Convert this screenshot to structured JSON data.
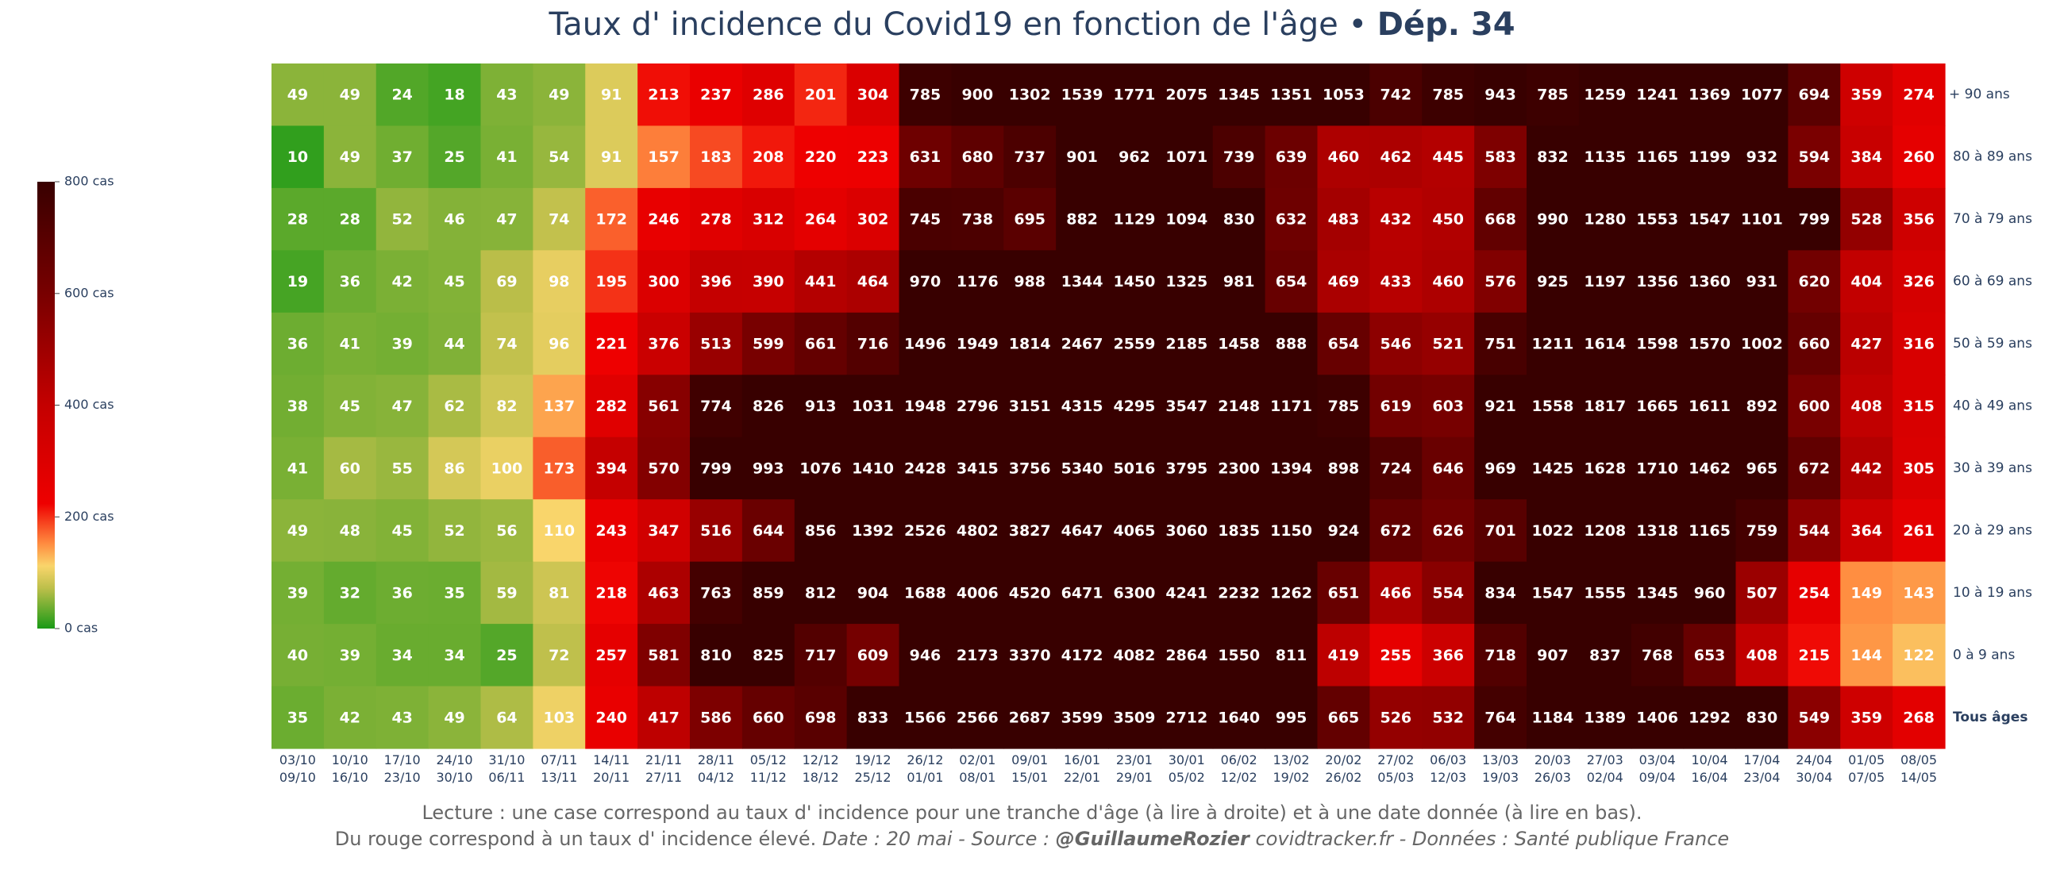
{
  "header": {
    "title_main": "Taux d' incidence du Covid19 en fonction de l'âge",
    "title_sep": " • ",
    "title_dept": "Dép. 34"
  },
  "footer": {
    "line1": "Lecture : une case correspond au taux d' incidence pour une tranche d'âge (à lire à droite) et à une date donnée (à lire en bas).",
    "line2_plain": "Du rouge correspond à un taux d' incidence élevé.  ",
    "line2_date": "Date : 20 mai - Source : ",
    "line2_author": "@GuillaumeRozier",
    "line2_rest": " covidtracker.fr - Données : Santé publique France"
  },
  "colors": {
    "green": "#1a9a16",
    "olive": "#bcbf4a",
    "yellow": "#f9d56b",
    "orange": "#ff8c40",
    "red": "#ee0000",
    "darkred": "#380000",
    "text": "#2a3f5f"
  },
  "chart_data": {
    "type": "heatmap",
    "title": "Taux d' incidence du Covid19 en fonction de l'âge • Dép. 34",
    "x": [
      [
        "03/10",
        "09/10"
      ],
      [
        "10/10",
        "16/10"
      ],
      [
        "17/10",
        "23/10"
      ],
      [
        "24/10",
        "30/10"
      ],
      [
        "31/10",
        "06/11"
      ],
      [
        "07/11",
        "13/11"
      ],
      [
        "14/11",
        "20/11"
      ],
      [
        "21/11",
        "27/11"
      ],
      [
        "28/11",
        "04/12"
      ],
      [
        "05/12",
        "11/12"
      ],
      [
        "12/12",
        "18/12"
      ],
      [
        "19/12",
        "25/12"
      ],
      [
        "26/12",
        "01/01"
      ],
      [
        "02/01",
        "08/01"
      ],
      [
        "09/01",
        "15/01"
      ],
      [
        "16/01",
        "22/01"
      ],
      [
        "23/01",
        "29/01"
      ],
      [
        "30/01",
        "05/02"
      ],
      [
        "06/02",
        "12/02"
      ],
      [
        "13/02",
        "19/02"
      ],
      [
        "20/02",
        "26/02"
      ],
      [
        "27/02",
        "05/03"
      ],
      [
        "06/03",
        "12/03"
      ],
      [
        "13/03",
        "19/03"
      ],
      [
        "20/03",
        "26/03"
      ],
      [
        "27/03",
        "02/04"
      ],
      [
        "03/04",
        "09/04"
      ],
      [
        "10/04",
        "16/04"
      ],
      [
        "17/04",
        "23/04"
      ],
      [
        "24/04",
        "30/04"
      ],
      [
        "01/05",
        "07/05"
      ],
      [
        "08/05",
        "14/05"
      ]
    ],
    "y": [
      "+ 90 ans",
      "80 à 89 ans",
      "70 à 79 ans",
      "60 à 69 ans",
      "50 à 59 ans",
      "40 à 49 ans",
      "30 à 39 ans",
      "20 à 29 ans",
      "10 à 19 ans",
      "0 à 9 ans",
      "Tous âges"
    ],
    "z": [
      [
        49,
        49,
        24,
        18,
        43,
        49,
        91,
        213,
        237,
        286,
        201,
        304,
        785,
        900,
        1302,
        1539,
        1771,
        2075,
        1345,
        1351,
        1053,
        742,
        785,
        943,
        785,
        1259,
        1241,
        1369,
        1077,
        694,
        359,
        274
      ],
      [
        10,
        49,
        37,
        25,
        41,
        54,
        91,
        157,
        183,
        208,
        220,
        223,
        631,
        680,
        737,
        901,
        962,
        1071,
        739,
        639,
        460,
        462,
        445,
        583,
        832,
        1135,
        1165,
        1199,
        932,
        594,
        384,
        260
      ],
      [
        28,
        28,
        52,
        46,
        47,
        74,
        172,
        246,
        278,
        312,
        264,
        302,
        745,
        738,
        695,
        882,
        1129,
        1094,
        830,
        632,
        483,
        432,
        450,
        668,
        990,
        1280,
        1553,
        1547,
        1101,
        799,
        528,
        356
      ],
      [
        19,
        36,
        42,
        45,
        69,
        98,
        195,
        300,
        396,
        390,
        441,
        464,
        970,
        1176,
        988,
        1344,
        1450,
        1325,
        981,
        654,
        469,
        433,
        460,
        576,
        925,
        1197,
        1356,
        1360,
        931,
        620,
        404,
        326
      ],
      [
        36,
        41,
        39,
        44,
        74,
        96,
        221,
        376,
        513,
        599,
        661,
        716,
        1496,
        1949,
        1814,
        2467,
        2559,
        2185,
        1458,
        888,
        654,
        546,
        521,
        751,
        1211,
        1614,
        1598,
        1570,
        1002,
        660,
        427,
        316
      ],
      [
        38,
        45,
        47,
        62,
        82,
        137,
        282,
        561,
        774,
        826,
        913,
        1031,
        1948,
        2796,
        3151,
        4315,
        4295,
        3547,
        2148,
        1171,
        785,
        619,
        603,
        921,
        1558,
        1817,
        1665,
        1611,
        892,
        600,
        408,
        315
      ],
      [
        41,
        60,
        55,
        86,
        100,
        173,
        394,
        570,
        799,
        993,
        1076,
        1410,
        2428,
        3415,
        3756,
        5340,
        5016,
        3795,
        2300,
        1394,
        898,
        724,
        646,
        969,
        1425,
        1628,
        1710,
        1462,
        965,
        672,
        442,
        305
      ],
      [
        49,
        48,
        45,
        52,
        56,
        110,
        243,
        347,
        516,
        644,
        856,
        1392,
        2526,
        4802,
        3827,
        4647,
        4065,
        3060,
        1835,
        1150,
        924,
        672,
        626,
        701,
        1022,
        1208,
        1318,
        1165,
        759,
        544,
        364,
        261
      ],
      [
        39,
        32,
        36,
        35,
        59,
        81,
        218,
        463,
        763,
        859,
        812,
        904,
        1688,
        4006,
        4520,
        6471,
        6300,
        4241,
        2232,
        1262,
        651,
        466,
        554,
        834,
        1547,
        1555,
        1345,
        960,
        507,
        254,
        149,
        143
      ],
      [
        40,
        39,
        34,
        34,
        25,
        72,
        257,
        581,
        810,
        825,
        717,
        609,
        946,
        2173,
        3370,
        4172,
        4082,
        2864,
        1550,
        811,
        419,
        255,
        366,
        718,
        907,
        837,
        768,
        653,
        408,
        215,
        144,
        122
      ],
      [
        35,
        42,
        43,
        49,
        64,
        103,
        240,
        417,
        586,
        660,
        698,
        833,
        1566,
        2566,
        2687,
        3599,
        3509,
        2712,
        1640,
        995,
        665,
        526,
        532,
        764,
        1184,
        1389,
        1406,
        1292,
        830,
        549,
        359,
        268
      ]
    ],
    "zmin": 0,
    "zmax": 800,
    "colorbar": {
      "ticks": [
        0,
        200,
        400,
        600,
        800
      ],
      "ticklabels": [
        "0 cas",
        "200 cas",
        "400 cas",
        "600 cas",
        "800 cas"
      ]
    }
  }
}
